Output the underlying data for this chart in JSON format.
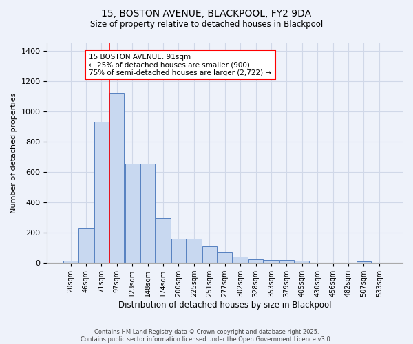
{
  "title_line1": "15, BOSTON AVENUE, BLACKPOOL, FY2 9DA",
  "title_line2": "Size of property relative to detached houses in Blackpool",
  "xlabel": "Distribution of detached houses by size in Blackpool",
  "ylabel": "Number of detached properties",
  "categories": [
    "20sqm",
    "46sqm",
    "71sqm",
    "97sqm",
    "123sqm",
    "148sqm",
    "174sqm",
    "200sqm",
    "225sqm",
    "251sqm",
    "277sqm",
    "302sqm",
    "328sqm",
    "353sqm",
    "379sqm",
    "405sqm",
    "430sqm",
    "456sqm",
    "482sqm",
    "507sqm",
    "533sqm"
  ],
  "values": [
    15,
    230,
    930,
    1120,
    655,
    655,
    295,
    160,
    160,
    108,
    68,
    42,
    25,
    20,
    20,
    13,
    0,
    0,
    0,
    10,
    0
  ],
  "bar_color": "#c8d8f0",
  "bar_edge_color": "#5580c0",
  "annotation_text": "15 BOSTON AVENUE: 91sqm\n← 25% of detached houses are smaller (900)\n75% of semi-detached houses are larger (2,722) →",
  "annotation_box_color": "white",
  "annotation_box_edge_color": "red",
  "ylim": [
    0,
    1450
  ],
  "yticks": [
    0,
    200,
    400,
    600,
    800,
    1000,
    1200,
    1400
  ],
  "grid_color": "#d0d8e8",
  "bg_color": "#eef2fa",
  "footer_line1": "Contains HM Land Registry data © Crown copyright and database right 2025.",
  "footer_line2": "Contains public sector information licensed under the Open Government Licence v3.0."
}
